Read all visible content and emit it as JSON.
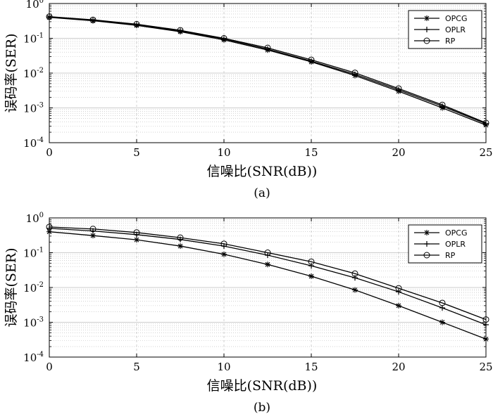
{
  "chart_data": [
    {
      "type": "line",
      "caption": "(a)",
      "xlabel": "信噪比(SNR(dB))",
      "ylabel": "误码率(SER)",
      "xlim": [
        0,
        25
      ],
      "ylim": [
        0.0001,
        1
      ],
      "yscale": "log",
      "grid": true,
      "legend_position": "top-right",
      "x_ticks": [
        "0",
        "5",
        "10",
        "15",
        "20",
        "25"
      ],
      "y_ticks": [
        {
          "base": "10",
          "exp": "0"
        },
        {
          "base": "10",
          "exp": "-1"
        },
        {
          "base": "10",
          "exp": "-2"
        },
        {
          "base": "10",
          "exp": "-3"
        },
        {
          "base": "10",
          "exp": "-4"
        }
      ],
      "x": [
        0,
        2.5,
        5,
        7.5,
        10,
        12.5,
        15,
        17.5,
        20,
        22.5,
        25
      ],
      "series": [
        {
          "name": "OPCG",
          "marker": "asterisk",
          "values": [
            0.4,
            0.32,
            0.235,
            0.155,
            0.09,
            0.046,
            0.021,
            0.0085,
            0.003,
            0.001,
            0.00032
          ]
        },
        {
          "name": "OPLR",
          "marker": "plus",
          "values": [
            0.41,
            0.33,
            0.245,
            0.162,
            0.096,
            0.049,
            0.022,
            0.0092,
            0.0033,
            0.00112,
            0.00035
          ]
        },
        {
          "name": "RP",
          "marker": "circle",
          "values": [
            0.42,
            0.34,
            0.255,
            0.17,
            0.1,
            0.053,
            0.024,
            0.0102,
            0.0036,
            0.00122,
            0.00037
          ]
        }
      ]
    },
    {
      "type": "line",
      "caption": "(b)",
      "xlabel": "信噪比(SNR(dB))",
      "ylabel": "误码率(SER)",
      "xlim": [
        0,
        25
      ],
      "ylim": [
        0.0001,
        1
      ],
      "yscale": "log",
      "grid": true,
      "legend_position": "top-right",
      "x_ticks": [
        "0",
        "5",
        "10",
        "15",
        "20",
        "25"
      ],
      "y_ticks": [
        {
          "base": "10",
          "exp": "0"
        },
        {
          "base": "10",
          "exp": "-1"
        },
        {
          "base": "10",
          "exp": "-2"
        },
        {
          "base": "10",
          "exp": "-3"
        },
        {
          "base": "10",
          "exp": "-4"
        }
      ],
      "x": [
        0,
        2.5,
        5,
        7.5,
        10,
        12.5,
        15,
        17.5,
        20,
        22.5,
        25
      ],
      "series": [
        {
          "name": "OPCG",
          "marker": "asterisk",
          "values": [
            0.4,
            0.31,
            0.235,
            0.155,
            0.09,
            0.046,
            0.021,
            0.0085,
            0.003,
            0.001,
            0.00033
          ]
        },
        {
          "name": "OPLR",
          "marker": "plus",
          "values": [
            0.5,
            0.42,
            0.33,
            0.24,
            0.155,
            0.085,
            0.042,
            0.019,
            0.0075,
            0.0026,
            0.00085
          ]
        },
        {
          "name": "RP",
          "marker": "circle",
          "values": [
            0.55,
            0.48,
            0.38,
            0.27,
            0.18,
            0.1,
            0.055,
            0.025,
            0.0095,
            0.0036,
            0.0012
          ]
        }
      ]
    }
  ]
}
